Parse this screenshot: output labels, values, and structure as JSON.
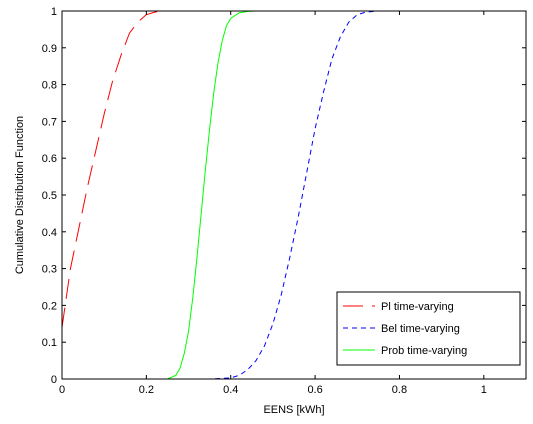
{
  "chart_data": {
    "type": "line",
    "title": "",
    "xlabel": "EENS [kWh]",
    "ylabel": "Cumulative Distribution Function",
    "xlim": [
      0,
      1.1
    ],
    "ylim": [
      0,
      1
    ],
    "xticks": [
      0,
      0.2,
      0.4,
      0.6,
      0.8,
      1
    ],
    "xtick_labels": [
      "0",
      "0.2",
      "0.4",
      "0.6",
      "0.8",
      "1"
    ],
    "yticks": [
      0,
      0.1,
      0.2,
      0.3,
      0.4,
      0.5,
      0.6,
      0.7,
      0.8,
      0.9,
      1
    ],
    "ytick_labels": [
      "0",
      "0.1",
      "0.2",
      "0.3",
      "0.4",
      "0.5",
      "0.6",
      "0.7",
      "0.8",
      "0.9",
      "1"
    ],
    "grid": false,
    "legend_position": "bottom-right",
    "series": [
      {
        "name": "Pl time-varying",
        "color": "#ff0000",
        "dash": "long-dash",
        "x": [
          0,
          0.01,
          0.02,
          0.04,
          0.06,
          0.08,
          0.1,
          0.12,
          0.14,
          0.16,
          0.18,
          0.2,
          0.22,
          0.24,
          0.26,
          0.3,
          1.1
        ],
        "y": [
          0.14,
          0.22,
          0.3,
          0.41,
          0.52,
          0.62,
          0.72,
          0.81,
          0.88,
          0.94,
          0.97,
          0.99,
          0.997,
          1,
          1,
          1,
          1
        ]
      },
      {
        "name": "Bel time-varying",
        "color": "#0000ff",
        "dash": "dashed",
        "x": [
          0,
          0.35,
          0.4,
          0.42,
          0.44,
          0.46,
          0.48,
          0.5,
          0.52,
          0.54,
          0.56,
          0.58,
          0.6,
          0.62,
          0.64,
          0.66,
          0.68,
          0.7,
          0.72,
          0.75,
          1.1
        ],
        "y": [
          0,
          0,
          0.003,
          0.01,
          0.025,
          0.05,
          0.09,
          0.15,
          0.23,
          0.33,
          0.44,
          0.56,
          0.68,
          0.78,
          0.87,
          0.93,
          0.97,
          0.99,
          0.997,
          1,
          1
        ]
      },
      {
        "name": "Prob time-varying",
        "color": "#00ff00",
        "dash": "solid",
        "x": [
          0,
          0.25,
          0.27,
          0.28,
          0.29,
          0.3,
          0.31,
          0.32,
          0.33,
          0.34,
          0.35,
          0.36,
          0.37,
          0.38,
          0.39,
          0.4,
          0.42,
          0.44,
          0.46,
          1.1
        ],
        "y": [
          0,
          0,
          0.01,
          0.03,
          0.07,
          0.13,
          0.22,
          0.33,
          0.45,
          0.57,
          0.68,
          0.78,
          0.86,
          0.92,
          0.96,
          0.98,
          0.995,
          0.999,
          1,
          1
        ]
      }
    ]
  }
}
